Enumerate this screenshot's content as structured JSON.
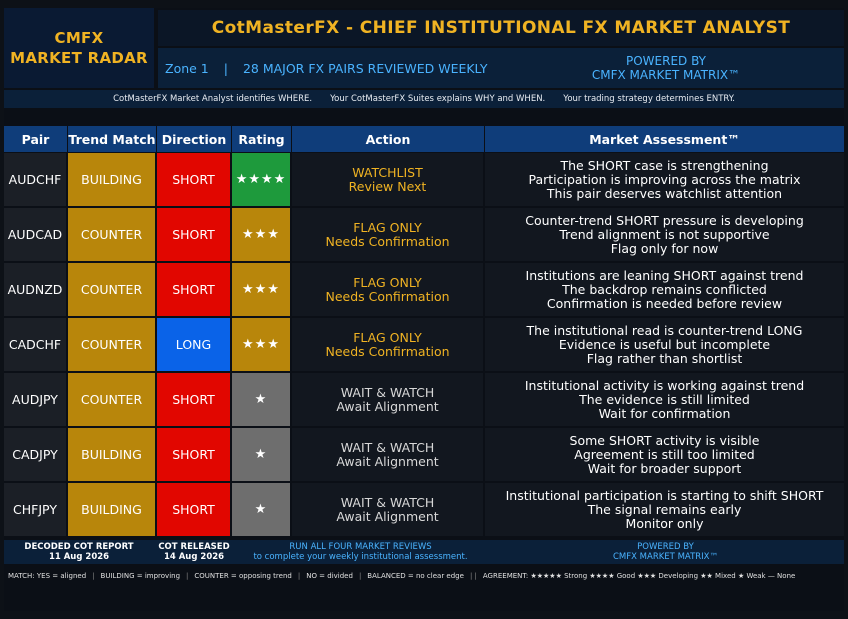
{
  "brand": {
    "line1": "CMFX",
    "line2": "MARKET RADAR"
  },
  "header": {
    "title": "CotMasterFX - CHIEF INSTITUTIONAL FX MARKET ANALYST",
    "zone": "Zone 1",
    "separator": "|",
    "pairs_reviewed": "28 MAJOR FX PAIRS REVIEWED WEEKLY",
    "powered_line1": "POWERED BY",
    "powered_line2": "CMFX MARKET MATRIX™"
  },
  "tagline": {
    "part1": "CotMasterFX Market Analyst identifies WHERE.",
    "part2": "Your CotMasterFX Suites explains WHY and WHEN.",
    "part3": "Your trading strategy determines ENTRY."
  },
  "columns": [
    "Pair",
    "Trend Match",
    "Direction",
    "Rating",
    "Action",
    "Market Assessment™"
  ],
  "rows": [
    {
      "pair": "AUDCHF",
      "trend": "BUILDING",
      "direction": "SHORT",
      "dir_class": "dir-short",
      "rating": "★★★★",
      "rate_class": "rate-4",
      "action1": "WATCHLIST",
      "action2": "Review Next",
      "act_class": "act-amber",
      "assess": [
        "The SHORT case is strengthening",
        "Participation is improving across the matrix",
        "This pair deserves watchlist attention"
      ]
    },
    {
      "pair": "AUDCAD",
      "trend": "COUNTER",
      "direction": "SHORT",
      "dir_class": "dir-short",
      "rating": "★★★",
      "rate_class": "rate-3",
      "action1": "FLAG ONLY",
      "action2": "Needs Confirmation",
      "act_class": "act-amber",
      "assess": [
        "Counter-trend SHORT pressure is developing",
        "Trend alignment is not supportive",
        "Flag only for now"
      ]
    },
    {
      "pair": "AUDNZD",
      "trend": "COUNTER",
      "direction": "SHORT",
      "dir_class": "dir-short",
      "rating": "★★★",
      "rate_class": "rate-3",
      "action1": "FLAG ONLY",
      "action2": "Needs Confirmation",
      "act_class": "act-amber",
      "assess": [
        "Institutions are leaning SHORT against trend",
        "The backdrop remains conflicted",
        "Confirmation is needed before review"
      ]
    },
    {
      "pair": "CADCHF",
      "trend": "COUNTER",
      "direction": "LONG",
      "dir_class": "dir-long",
      "rating": "★★★",
      "rate_class": "rate-3",
      "action1": "FLAG ONLY",
      "action2": "Needs Confirmation",
      "act_class": "act-amber",
      "assess": [
        "The institutional read is counter-trend LONG",
        "Evidence is useful but incomplete",
        "Flag rather than shortlist"
      ]
    },
    {
      "pair": "AUDJPY",
      "trend": "COUNTER",
      "direction": "SHORT",
      "dir_class": "dir-short",
      "rating": "★",
      "rate_class": "rate-1",
      "action1": "WAIT & WATCH",
      "action2": "Await Alignment",
      "act_class": "act-gray",
      "assess": [
        "Institutional activity is working against trend",
        "The evidence is still limited",
        "Wait for confirmation"
      ]
    },
    {
      "pair": "CADJPY",
      "trend": "BUILDING",
      "direction": "SHORT",
      "dir_class": "dir-short",
      "rating": "★",
      "rate_class": "rate-1",
      "action1": "WAIT & WATCH",
      "action2": "Await Alignment",
      "act_class": "act-gray",
      "assess": [
        "Some SHORT activity is visible",
        "Agreement is still too limited",
        "Wait for broader support"
      ]
    },
    {
      "pair": "CHFJPY",
      "trend": "BUILDING",
      "direction": "SHORT",
      "dir_class": "dir-short",
      "rating": "★",
      "rate_class": "rate-1",
      "action1": "WAIT & WATCH",
      "action2": "Await Alignment",
      "act_class": "act-gray",
      "assess": [
        "Institutional participation is starting to shift SHORT",
        "The signal remains early",
        "Monitor only"
      ]
    }
  ],
  "footer": {
    "decoded_label": "DECODED COT REPORT",
    "decoded_date": "11 Aug 2026",
    "released_label": "COT RELEASED",
    "released_date": "14 Aug 2026",
    "run_line1": "RUN ALL FOUR MARKET REVIEWS",
    "run_line2": "to complete your weekly institutional assessment.",
    "powered_line1": "POWERED BY",
    "powered_line2": "CMFX MARKET MATRIX™"
  },
  "legend": {
    "match": "MATCH: YES = aligned",
    "building": "BUILDING = improving",
    "counter": "COUNTER = opposing trend",
    "no": "NO = divided",
    "balanced": "BALANCED = no clear edge",
    "agreement": "AGREEMENT: ★★★★★ Strong   ★★★★ Good   ★★★ Developing   ★★ Mixed   ★ Weak   — None",
    "sep": "|",
    "sep_double": "| |"
  },
  "colors": {
    "accent_gold": "#f0b323",
    "header_blue": "#0f3d7a",
    "short_red": "#e10600",
    "long_blue": "#0a63e8",
    "rating_green": "#1e9a3c"
  }
}
